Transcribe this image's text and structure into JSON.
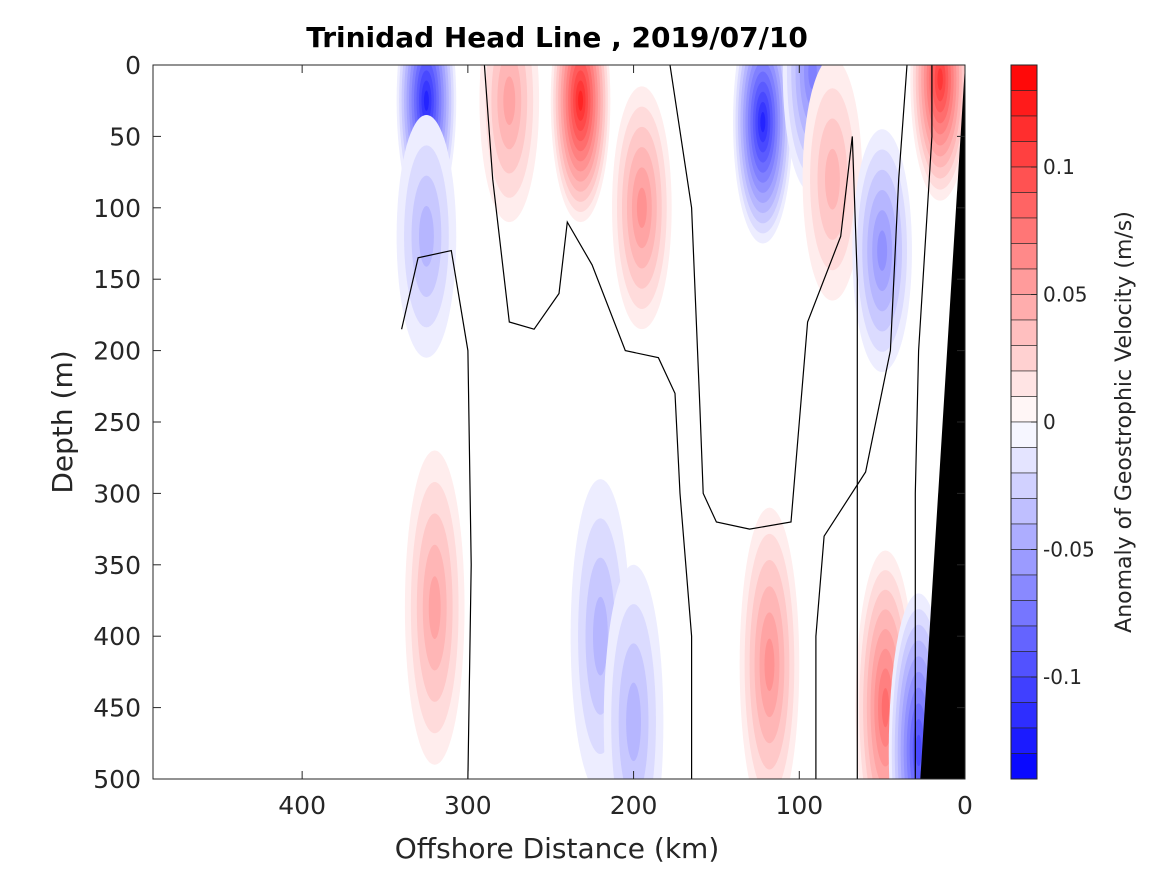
{
  "chart_data": {
    "type": "heatmap",
    "subtype": "filled-contour-section",
    "title": "Trinidad Head Line , 2019/07/10",
    "xlabel": "Offshore Distance (km)",
    "ylabel": "Depth (m)",
    "colorbar_label": "Anomaly of Geostrophic Velocity (m/s)",
    "xlim": [
      490,
      0
    ],
    "x_reversed": true,
    "ylim": [
      0,
      500
    ],
    "y_reversed": true,
    "xticks": [
      400,
      300,
      200,
      100,
      0
    ],
    "xtick_labels": [
      "400",
      "300",
      "200",
      "100",
      "0"
    ],
    "yticks": [
      0,
      50,
      100,
      150,
      200,
      250,
      300,
      350,
      400,
      450,
      500
    ],
    "ytick_labels": [
      "0",
      "50",
      "100",
      "150",
      "200",
      "250",
      "300",
      "350",
      "400",
      "450",
      "500"
    ],
    "colorbar": {
      "range": [
        -0.14,
        0.14
      ],
      "step": 0.01,
      "ticks": [
        0.1,
        0.05,
        0,
        -0.05,
        -0.1
      ],
      "tick_labels": [
        "0.1",
        "0.05",
        "0",
        "-0.05",
        "-0.1"
      ],
      "positive_color": "#ff0000",
      "negative_color": "#0000ff",
      "zero_color": "#ffffff"
    },
    "data_extent_km": [
      0,
      340
    ],
    "colormap": "blue-white-red",
    "bathymetry_color": "#000000",
    "bathymetry": {
      "distance_km": [
        0,
        27,
        0
      ],
      "depth_m": [
        0,
        500,
        500
      ],
      "surface_point_km": 0
    },
    "zero_contours": [
      {
        "distance_km": [
          340,
          330,
          310,
          300,
          298,
          300
        ],
        "depth_m": [
          185,
          135,
          130,
          200,
          350,
          500
        ]
      },
      {
        "distance_km": [
          290,
          285,
          275,
          260,
          245,
          240,
          225,
          205,
          185,
          175,
          172,
          165,
          165
        ],
        "depth_m": [
          0,
          80,
          180,
          185,
          160,
          110,
          140,
          200,
          205,
          230,
          300,
          400,
          500
        ]
      },
      {
        "distance_km": [
          178,
          165,
          160,
          158,
          150,
          130,
          105,
          100,
          95,
          75,
          68,
          65,
          65
        ],
        "depth_m": [
          0,
          100,
          240,
          300,
          320,
          325,
          320,
          250,
          180,
          120,
          50,
          150,
          500
        ]
      },
      {
        "distance_km": [
          35,
          40,
          45,
          60,
          85,
          90,
          90
        ],
        "depth_m": [
          0,
          80,
          200,
          285,
          330,
          400,
          500
        ]
      },
      {
        "distance_km": [
          20,
          20,
          28,
          30,
          30
        ],
        "depth_m": [
          0,
          50,
          200,
          300,
          500
        ]
      }
    ],
    "velocity_features": [
      {
        "sign": "negative",
        "center_km": [
          325,
          25
        ],
        "peak_mps": -0.12
      },
      {
        "sign": "negative",
        "center_km": [
          325,
          120
        ],
        "peak_mps": -0.04
      },
      {
        "sign": "positive",
        "center_km": [
          275,
          25
        ],
        "peak_mps": 0.05
      },
      {
        "sign": "positive",
        "center_km": [
          232,
          25
        ],
        "peak_mps": 0.12
      },
      {
        "sign": "positive",
        "center_km": [
          195,
          100
        ],
        "peak_mps": 0.06
      },
      {
        "sign": "negative",
        "center_km": [
          122,
          40
        ],
        "peak_mps": -0.12
      },
      {
        "sign": "negative",
        "center_km": [
          92,
          5
        ],
        "peak_mps": -0.07
      },
      {
        "sign": "positive",
        "center_km": [
          80,
          80
        ],
        "peak_mps": 0.04
      },
      {
        "sign": "negative",
        "center_km": [
          50,
          130
        ],
        "peak_mps": -0.06
      },
      {
        "sign": "positive",
        "center_km": [
          15,
          10
        ],
        "peak_mps": 0.11
      },
      {
        "sign": "positive",
        "center_km": [
          320,
          380
        ],
        "peak_mps": 0.05
      },
      {
        "sign": "negative",
        "center_km": [
          220,
          400
        ],
        "peak_mps": -0.04
      },
      {
        "sign": "negative",
        "center_km": [
          200,
          460
        ],
        "peak_mps": -0.04
      },
      {
        "sign": "positive",
        "center_km": [
          118,
          420
        ],
        "peak_mps": 0.06
      },
      {
        "sign": "positive",
        "center_km": [
          48,
          450
        ],
        "peak_mps": 0.08
      },
      {
        "sign": "negative",
        "center_km": [
          28,
          480
        ],
        "peak_mps": -0.1
      }
    ]
  }
}
